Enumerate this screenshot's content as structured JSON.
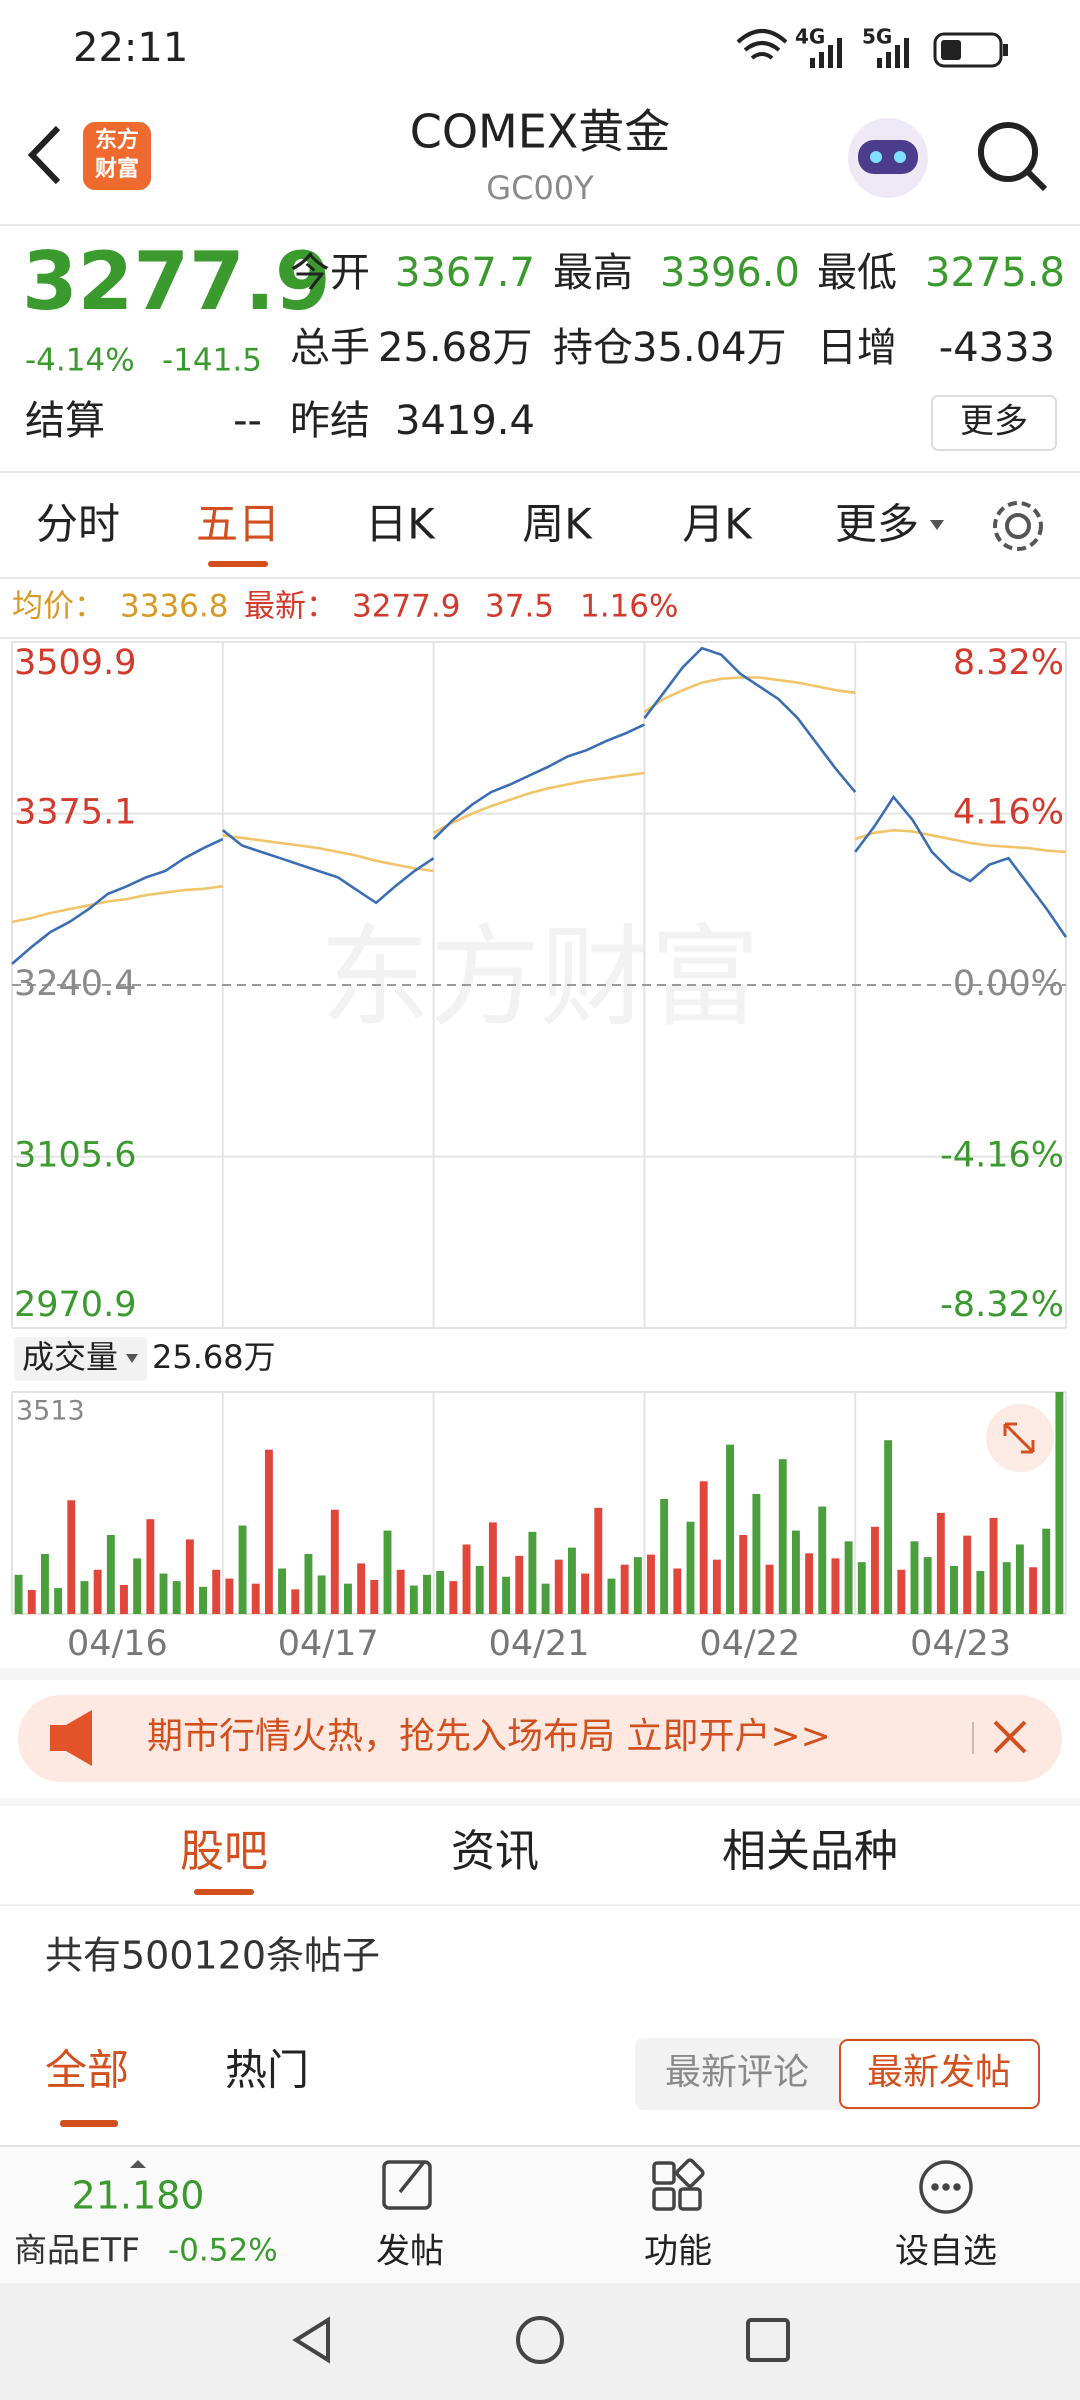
{
  "status_bar": {
    "time": "22:11",
    "net1": "4G",
    "net2": "5G"
  },
  "header": {
    "logo": [
      "东方",
      "财富"
    ],
    "title": "COMEX黄金",
    "code": "GC00Y"
  },
  "quote": {
    "price": "3277.9",
    "change_pct": "-4.14%",
    "change": "-141.5",
    "fields": [
      {
        "label": "今开",
        "value": "3367.7"
      },
      {
        "label": "最高",
        "value": "3396.0"
      },
      {
        "label": "最低",
        "value": "3275.8"
      },
      {
        "label": "总手",
        "value": "25.68万"
      },
      {
        "label": "持仓",
        "value": "35.04万"
      },
      {
        "label": "日增",
        "value": "-4333"
      },
      {
        "label": "结算",
        "value": "--"
      },
      {
        "label": "昨结",
        "value": "3419.4"
      }
    ],
    "more": "更多"
  },
  "tabs": {
    "items": [
      "分时",
      "五日",
      "日K",
      "周K",
      "月K",
      "更多"
    ],
    "active": 1
  },
  "info": {
    "avg": "3336.8",
    "latest": "3277.9",
    "change": "37.5",
    "change_pct": "1.16%"
  },
  "watermark": "东方财富",
  "volume_header": {
    "label": "成交量",
    "value": "25.68万"
  },
  "chart_data": [
    {
      "type": "line",
      "ylim": [
        2970.9,
        3509.9
      ],
      "yticks": [
        3509.9,
        3375.1,
        3240.4,
        3105.6,
        2970.9
      ],
      "y2lim": [
        -8.32,
        8.32
      ],
      "y2ticks": [
        {
          "value": 8.32,
          "label": "8.32%"
        },
        {
          "value": 4.16,
          "label": "4.16%"
        },
        {
          "value": 0,
          "label": "0.00%"
        },
        {
          "value": -4.16,
          "label": "-4.16%"
        },
        {
          "value": -8.32,
          "label": "-8.32%"
        }
      ],
      "up_color": "#d33a2c",
      "down_color": "#3a9a2e",
      "flat_color": "#8a8a8a",
      "series": [
        {
          "name": "最新：",
          "color": "#3b6db3",
          "values": [
            [
              3257,
              3270,
              3282,
              3290,
              3300,
              3312,
              3318,
              3325,
              3330,
              3340,
              3348,
              3355
            ],
            [
              3362,
              3350,
              3345,
              3340,
              3335,
              3330,
              3325,
              3315,
              3305,
              3318,
              3330,
              3340
            ],
            [
              3355,
              3370,
              3382,
              3392,
              3398,
              3405,
              3412,
              3420,
              3425,
              3432,
              3438,
              3445
            ],
            [
              3450,
              3470,
              3490,
              3505,
              3500,
              3485,
              3475,
              3465,
              3450,
              3430,
              3410,
              3392
            ],
            [
              3345,
              3365,
              3388,
              3370,
              3345,
              3330,
              3322,
              3335,
              3340,
              3320,
              3300,
              3278
            ]
          ]
        },
        {
          "name": "均价：",
          "color": "#f2c46a",
          "values": [
            [
              3290,
              3293,
              3297,
              3300,
              3303,
              3306,
              3308,
              3311,
              3313,
              3315,
              3316,
              3318
            ],
            [
              3358,
              3356,
              3354,
              3352,
              3350,
              3348,
              3345,
              3342,
              3338,
              3335,
              3332,
              3330
            ],
            [
              3360,
              3368,
              3375,
              3381,
              3386,
              3391,
              3395,
              3398,
              3401,
              3403,
              3405,
              3407
            ],
            [
              3455,
              3465,
              3472,
              3478,
              3481,
              3482,
              3482,
              3480,
              3478,
              3475,
              3472,
              3470
            ],
            [
              3355,
              3360,
              3362,
              3361,
              3358,
              3355,
              3352,
              3350,
              3349,
              3348,
              3346,
              3345
            ]
          ]
        }
      ]
    },
    {
      "type": "bar",
      "categories": [
        "04/16",
        "04/17",
        "04/21",
        "04/22",
        "04/23"
      ],
      "ylim": [
        0,
        3513
      ],
      "yticks": [
        3513
      ],
      "values": [
        [
          620,
          380,
          950,
          410,
          1800,
          520,
          700,
          1250,
          460,
          880,
          1500,
          640,
          520,
          1180,
          430,
          700
        ],
        [
          560,
          1400,
          480,
          2600,
          720,
          390,
          950,
          610,
          1650,
          480,
          800,
          540,
          1320,
          700,
          450,
          620
        ],
        [
          680,
          520,
          1100,
          760,
          1450,
          590,
          920,
          1300,
          480,
          860,
          1050,
          640,
          1680,
          560,
          780,
          900
        ],
        [
          940,
          1820,
          720,
          1460,
          2100,
          860,
          2680,
          1250,
          1900,
          780,
          2450,
          1320,
          960,
          1700,
          880,
          1150
        ],
        [
          820,
          1380,
          2750,
          700,
          1150,
          900,
          1600,
          760,
          1240,
          680,
          1520,
          820,
          1100,
          740,
          1350,
          3513
        ]
      ],
      "bar_colors": [
        [
          "#4a9e3c",
          "#e0473a",
          "#4a9e3c",
          "#4a9e3c",
          "#e0473a",
          "#4a9e3c",
          "#e0473a",
          "#4a9e3c",
          "#e0473a",
          "#4a9e3c",
          "#e0473a",
          "#4a9e3c",
          "#4a9e3c",
          "#e0473a",
          "#4a9e3c",
          "#e0473a"
        ],
        [
          "#e0473a",
          "#4a9e3c",
          "#e0473a",
          "#e0473a",
          "#4a9e3c",
          "#e0473a",
          "#4a9e3c",
          "#4a9e3c",
          "#e0473a",
          "#4a9e3c",
          "#e0473a",
          "#e0473a",
          "#4a9e3c",
          "#e0473a",
          "#4a9e3c",
          "#4a9e3c"
        ],
        [
          "#4a9e3c",
          "#e0473a",
          "#e0473a",
          "#4a9e3c",
          "#e0473a",
          "#4a9e3c",
          "#e0473a",
          "#4a9e3c",
          "#4a9e3c",
          "#e0473a",
          "#4a9e3c",
          "#e0473a",
          "#e0473a",
          "#4a9e3c",
          "#e0473a",
          "#4a9e3c"
        ],
        [
          "#e0473a",
          "#4a9e3c",
          "#e0473a",
          "#4a9e3c",
          "#e0473a",
          "#e0473a",
          "#4a9e3c",
          "#e0473a",
          "#4a9e3c",
          "#e0473a",
          "#4a9e3c",
          "#4a9e3c",
          "#e0473a",
          "#4a9e3c",
          "#e0473a",
          "#4a9e3c"
        ],
        [
          "#4a9e3c",
          "#e0473a",
          "#4a9e3c",
          "#e0473a",
          "#4a9e3c",
          "#4a9e3c",
          "#e0473a",
          "#4a9e3c",
          "#e0473a",
          "#4a9e3c",
          "#e0473a",
          "#4a9e3c",
          "#4a9e3c",
          "#e0473a",
          "#4a9e3c",
          "#4a9e3c"
        ]
      ]
    }
  ],
  "banner": {
    "text": "期市行情火热，抢先入场布局 立即开户>>"
  },
  "section_tabs": {
    "items": [
      "股吧",
      "资讯",
      "相关品种"
    ],
    "active": 0
  },
  "post_count": "共有500120条帖子",
  "filter": {
    "items": [
      "全部",
      "热门"
    ],
    "active": 0,
    "sort": [
      "最新评论",
      "最新发帖"
    ],
    "sort_active": 1
  },
  "bottom_bar": {
    "etf_price": "21.180",
    "etf_name": "商品ETF",
    "etf_change": "-0.52%",
    "actions": [
      "发帖",
      "功能",
      "设自选"
    ]
  }
}
